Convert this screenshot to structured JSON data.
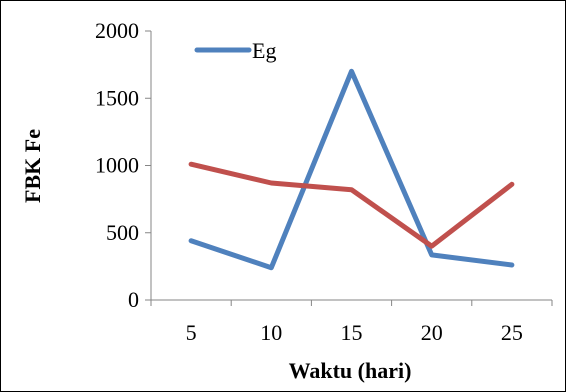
{
  "chart_data": {
    "type": "line",
    "xlabel": "Waktu (hari)",
    "ylabel": "FBK Fe",
    "categories": [
      "5",
      "10",
      "15",
      "20",
      "25"
    ],
    "ylim": [
      0,
      2000
    ],
    "yticks": [
      "0",
      "500",
      "1000",
      "1500",
      "2000"
    ],
    "grid": false,
    "legend_position": "top-left",
    "series": [
      {
        "name": "Eg",
        "color": "#4f81bd",
        "values": [
          440,
          240,
          1700,
          335,
          260
        ]
      },
      {
        "color": "#c0504d",
        "values": [
          1010,
          870,
          820,
          400,
          860
        ]
      }
    ]
  }
}
